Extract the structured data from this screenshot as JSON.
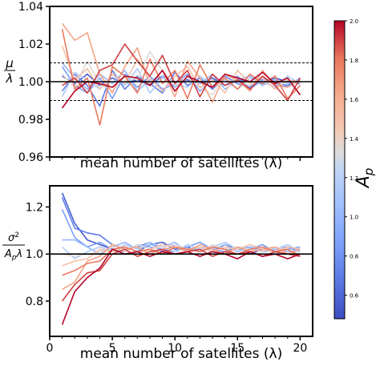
{
  "figure": {
    "colorbar": {
      "label_main": "A",
      "label_sub": "p",
      "range": [
        0.48,
        2.0
      ],
      "ticks": [
        "0.6",
        "0.8",
        "1.0",
        "1.2",
        "1.4",
        "1.6",
        "1.8",
        "2.0"
      ],
      "colormap": "coolwarm"
    }
  },
  "chart_data": [
    {
      "type": "line",
      "panel": "top",
      "xlabel": "mean number of satellites (λ)",
      "ylabel_num": "μ",
      "ylabel_den": "λ",
      "xlim": [
        0,
        21
      ],
      "ylim": [
        0.96,
        1.04
      ],
      "yticks": [
        "0.96",
        "0.98",
        "1.00",
        "1.02",
        "1.04"
      ],
      "x_ticklabels_shown": false,
      "reference_lines": [
        {
          "y": 1.0,
          "style": "solid"
        },
        {
          "y": 1.01,
          "style": "dashed"
        },
        {
          "y": 0.99,
          "style": "dashed"
        }
      ],
      "x": [
        1,
        2,
        3,
        4,
        5,
        6,
        7,
        8,
        9,
        10,
        11,
        12,
        13,
        14,
        15,
        16,
        17,
        18,
        19,
        20
      ],
      "series": [
        {
          "ap": 0.55,
          "values": [
            1.003,
            0.999,
            1.004,
            0.998,
            1.002,
            0.999,
            1.001,
            0.998,
            1.003,
            1.0,
            1.001,
            0.999,
            1.002,
            0.998,
            1.001,
            1.0,
            0.999,
            1.002,
            1.0,
            0.999
          ]
        },
        {
          "ap": 0.7,
          "values": [
            0.995,
            1.004,
            0.998,
            0.987,
            1.006,
            0.996,
            1.003,
            0.999,
            0.994,
            1.005,
            0.998,
            1.002,
            0.996,
            1.003,
            0.999,
            0.997,
            1.002,
            0.999,
            0.998,
            1.001
          ]
        },
        {
          "ap": 0.85,
          "values": [
            1.008,
            0.998,
            0.994,
            1.002,
            0.991,
            1.004,
            0.997,
            1.003,
            0.996,
            0.999,
            1.004,
            0.995,
            1.001,
            0.998,
            1.003,
            0.996,
            1.001,
            1.0,
            0.997,
            1.002
          ]
        },
        {
          "ap": 1.0,
          "values": [
            1.01,
            1.002,
            0.996,
            1.004,
            0.999,
            1.006,
            0.995,
            1.001,
            1.003,
            0.997,
            1.002,
            0.999,
            1.004,
            0.996,
            1.001,
            1.003,
            0.998,
            1.001,
            0.999,
            1.0
          ]
        },
        {
          "ap": 1.15,
          "values": [
            0.992,
            1.005,
            1.001,
            0.996,
            1.004,
            0.998,
            1.007,
            0.994,
            1.002,
            0.999,
            0.997,
            1.003,
            0.998,
            1.001,
            0.996,
            1.002,
            1.0,
            0.997,
            1.003,
            0.999
          ]
        },
        {
          "ap": 1.35,
          "values": [
            1.004,
            0.997,
            1.011,
            0.999,
            0.995,
            1.003,
            1.001,
            1.016,
            1.006,
            0.998,
            1.002,
            0.997,
            0.993,
            1.004,
            1.0,
            0.998,
            1.003,
            0.999,
            1.001,
            0.998
          ]
        },
        {
          "ap": 1.5,
          "values": [
            1.019,
            1.001,
            1.007,
            0.996,
            1.004,
            0.999,
            1.012,
            1.002,
            0.995,
            1.003,
            1.008,
            0.997,
            1.001,
            0.994,
            1.006,
            0.999,
            1.002,
            0.996,
            1.001,
            1.0
          ]
        },
        {
          "ap": 1.65,
          "values": [
            1.031,
            1.022,
            1.026,
            1.004,
            0.994,
            1.008,
            1.018,
            0.998,
            1.006,
            0.992,
            1.011,
            1.002,
            0.989,
            1.004,
            1.001,
            0.995,
            1.006,
            0.998,
            0.997,
            1.001
          ]
        },
        {
          "ap": 1.8,
          "values": [
            1.028,
            0.996,
            1.002,
            0.977,
            1.008,
            1.003,
            0.994,
            1.012,
            0.999,
            1.006,
            0.991,
            1.009,
            0.997,
            1.002,
            0.996,
            1.004,
            0.999,
            1.003,
            0.991,
            0.998
          ]
        },
        {
          "ap": 1.9,
          "values": [
            0.998,
            1.002,
            0.994,
            1.006,
            1.009,
            1.02,
            1.011,
            1.003,
            1.014,
            0.999,
            1.006,
            0.992,
            1.004,
            0.998,
            1.001,
            0.996,
            1.003,
            0.998,
            0.99,
            1.002
          ]
        },
        {
          "ap": 2.0,
          "values": [
            0.986,
            0.995,
            1.0,
            0.999,
            0.997,
            1.003,
            1.002,
            0.998,
            1.006,
            0.995,
            1.003,
            1.0,
            0.997,
            1.004,
            1.002,
            1.0,
            1.005,
            0.999,
            1.002,
            0.993
          ]
        }
      ]
    },
    {
      "type": "line",
      "panel": "bottom",
      "xlabel": "mean number of satellites (λ)",
      "ylabel_num": "σ",
      "ylabel_num_sup": "2",
      "ylabel_den": "A",
      "ylabel_den_sub": "p",
      "ylabel_den_tail": "λ",
      "xlim": [
        0,
        21
      ],
      "ylim": [
        0.65,
        1.29
      ],
      "xticks": [
        "0",
        "5",
        "10",
        "15",
        "20"
      ],
      "yticks": [
        "0.8",
        "1.0",
        "1.2"
      ],
      "reference_lines": [
        {
          "y": 1.0,
          "style": "solid"
        }
      ],
      "x": [
        1,
        2,
        3,
        4,
        5,
        6,
        7,
        8,
        9,
        10,
        11,
        12,
        13,
        14,
        15,
        16,
        17,
        18,
        19,
        20
      ],
      "series": [
        {
          "ap": 0.55,
          "values": [
            1.26,
            1.13,
            1.06,
            1.04,
            1.02,
            1.03,
            1.01,
            1.04,
            1.05,
            1.02,
            1.03,
            1.01,
            1.03,
            1.02,
            1.03,
            1.0,
            1.02,
            1.01,
            1.03,
            1.02
          ]
        },
        {
          "ap": 0.7,
          "values": [
            1.24,
            1.11,
            1.09,
            1.08,
            1.04,
            1.02,
            1.03,
            1.05,
            1.01,
            1.04,
            1.02,
            1.03,
            1.01,
            1.04,
            1.02,
            1.03,
            1.01,
            1.02,
            1.03,
            1.01
          ]
        },
        {
          "ap": 0.85,
          "values": [
            1.19,
            1.07,
            1.03,
            1.05,
            1.02,
            1.01,
            1.04,
            1.03,
            1.02,
            1.01,
            1.03,
            1.05,
            1.02,
            1.01,
            1.03,
            1.02,
            1.04,
            1.01,
            1.02,
            1.03
          ]
        },
        {
          "ap": 1.0,
          "values": [
            1.06,
            1.06,
            1.03,
            1.0,
            1.03,
            1.05,
            1.02,
            1.04,
            1.03,
            1.05,
            1.01,
            1.03,
            1.02,
            1.04,
            1.01,
            1.03,
            1.02,
            1.03,
            1.01,
            1.02
          ]
        },
        {
          "ap": 1.15,
          "values": [
            1.03,
            0.98,
            1.01,
            1.03,
            1.01,
            1.04,
            1.02,
            1.05,
            1.03,
            1.01,
            1.04,
            1.02,
            1.03,
            1.05,
            1.02,
            1.01,
            1.03,
            1.02,
            1.04,
            1.01
          ]
        },
        {
          "ap": 1.35,
          "values": [
            1.0,
            0.99,
            1.0,
            1.01,
            1.03,
            1.01,
            1.04,
            1.02,
            1.03,
            1.04,
            1.02,
            1.01,
            1.04,
            1.02,
            1.03,
            1.02,
            1.01,
            1.03,
            1.02,
            1.0
          ]
        },
        {
          "ap": 1.5,
          "values": [
            0.95,
            0.97,
            0.98,
            1.02,
            1.01,
            1.03,
            1.01,
            1.02,
            1.04,
            1.03,
            1.02,
            1.03,
            1.01,
            1.03,
            1.02,
            1.04,
            1.02,
            1.01,
            1.03,
            1.02
          ]
        },
        {
          "ap": 1.65,
          "values": [
            0.85,
            0.88,
            0.97,
            0.99,
            1.04,
            1.02,
            1.03,
            1.0,
            1.02,
            1.03,
            1.01,
            1.04,
            1.02,
            1.0,
            1.03,
            1.01,
            1.02,
            1.03,
            1.0,
            1.02
          ]
        },
        {
          "ap": 1.8,
          "values": [
            0.91,
            0.93,
            0.96,
            0.97,
            1.02,
            1.03,
            1.01,
            1.02,
            1.0,
            1.03,
            1.02,
            1.01,
            1.03,
            1.02,
            1.0,
            1.02,
            1.03,
            1.01,
            1.02,
            0.99
          ]
        },
        {
          "ap": 1.9,
          "values": [
            0.8,
            0.87,
            0.92,
            0.93,
            1.0,
            1.02,
            0.99,
            1.01,
            1.02,
            1.0,
            1.01,
            1.02,
            0.99,
            1.01,
            1.0,
            1.01,
            0.99,
            1.01,
            1.0,
            0.99
          ]
        },
        {
          "ap": 2.0,
          "values": [
            0.7,
            0.84,
            0.9,
            0.94,
            1.02,
            1.0,
            1.01,
            0.99,
            1.01,
            1.0,
            1.01,
            0.99,
            1.01,
            1.0,
            0.98,
            1.01,
            0.99,
            1.0,
            0.98,
            1.0
          ]
        }
      ]
    }
  ]
}
